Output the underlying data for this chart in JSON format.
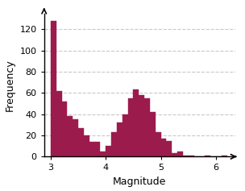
{
  "bar_left_edges": [
    3.0,
    3.1,
    3.2,
    3.3,
    3.4,
    3.5,
    3.6,
    3.7,
    3.8,
    3.9,
    4.0,
    4.1,
    4.2,
    4.3,
    4.4,
    4.5,
    4.6,
    4.7,
    4.8,
    4.9,
    5.0,
    5.1,
    5.2,
    5.3,
    5.4,
    5.5,
    5.6,
    5.7,
    5.8,
    5.9,
    6.0,
    6.1
  ],
  "bar_heights": [
    128,
    62,
    52,
    38,
    35,
    27,
    20,
    14,
    14,
    5,
    10,
    23,
    32,
    40,
    55,
    63,
    58,
    55,
    42,
    23,
    17,
    15,
    3,
    5,
    1,
    1,
    0,
    0,
    1,
    0,
    0,
    1
  ],
  "bar_width": 0.1,
  "bar_color": "#9B1B4D",
  "bar_edgecolor": "#9B1B4D",
  "xlabel": "Magnitude",
  "ylabel": "Frequency",
  "xlim": [
    2.88,
    6.35
  ],
  "ylim": [
    0,
    135
  ],
  "xticks": [
    3,
    4,
    5,
    6
  ],
  "yticks": [
    0,
    20,
    40,
    60,
    80,
    100,
    120
  ],
  "grid_color": "#bbbbbb",
  "grid_linestyle": "--",
  "grid_alpha": 0.8,
  "background_color": "#ffffff",
  "xlabel_fontsize": 9,
  "ylabel_fontsize": 9,
  "tick_fontsize": 8
}
